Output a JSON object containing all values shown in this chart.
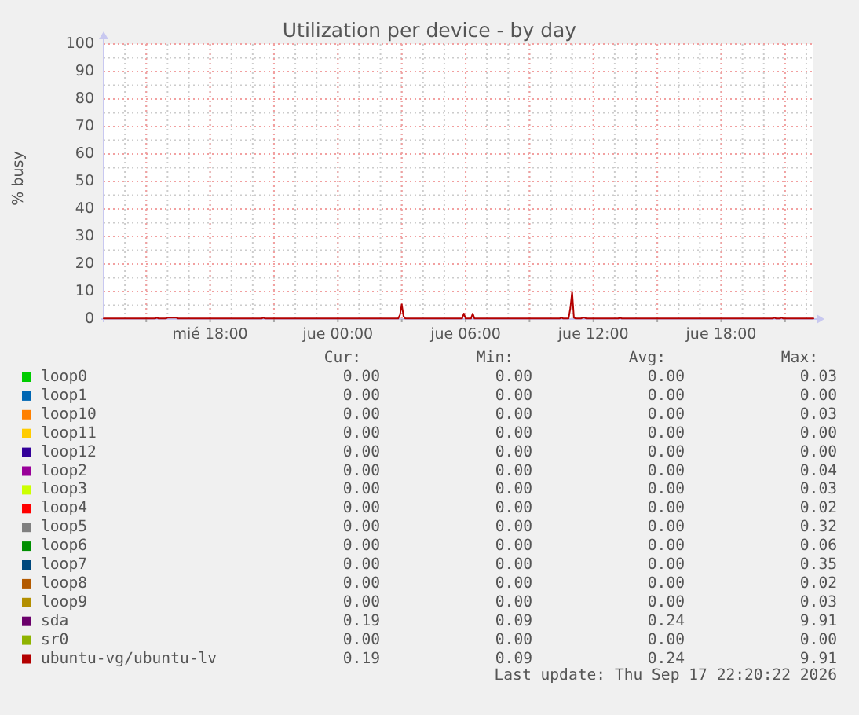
{
  "chart_data": {
    "type": "line",
    "title": "Utilization per device - by day",
    "ylabel": "% busy",
    "xlim": [
      "2026-09-16T13:00",
      "2026-09-17T22:20"
    ],
    "xticks": [
      {
        "value": "2026-09-16T15:00",
        "label": null
      },
      {
        "value": "2026-09-16T18:00",
        "label": "mié 18:00"
      },
      {
        "value": "2026-09-16T21:00",
        "label": null
      },
      {
        "value": "2026-09-17T00:00",
        "label": "jue 00:00"
      },
      {
        "value": "2026-09-17T03:00",
        "label": null
      },
      {
        "value": "2026-09-17T06:00",
        "label": "jue 06:00"
      },
      {
        "value": "2026-09-17T09:00",
        "label": null
      },
      {
        "value": "2026-09-17T12:00",
        "label": "jue 12:00"
      },
      {
        "value": "2026-09-17T15:00",
        "label": null
      },
      {
        "value": "2026-09-17T18:00",
        "label": "jue 18:00"
      },
      {
        "value": "2026-09-17T21:00",
        "label": null
      }
    ],
    "ylim": [
      0,
      100
    ],
    "yticks": [
      0,
      10,
      20,
      30,
      40,
      50,
      60,
      70,
      80,
      90,
      100
    ],
    "grid": true,
    "legend": "bottom",
    "x": [
      "2026-09-16T13:00",
      "2026-09-16T15:25",
      "2026-09-16T15:30",
      "2026-09-16T15:35",
      "2026-09-16T15:55",
      "2026-09-16T16:00",
      "2026-09-16T16:25",
      "2026-09-16T16:30",
      "2026-09-16T20:25",
      "2026-09-16T20:30",
      "2026-09-16T20:35",
      "2026-09-17T02:50",
      "2026-09-17T02:55",
      "2026-09-17T03:00",
      "2026-09-17T03:05",
      "2026-09-17T03:10",
      "2026-09-17T05:50",
      "2026-09-17T05:55",
      "2026-09-17T06:00",
      "2026-09-17T06:15",
      "2026-09-17T06:20",
      "2026-09-17T06:25",
      "2026-09-17T10:25",
      "2026-09-17T10:30",
      "2026-09-17T10:35",
      "2026-09-17T10:50",
      "2026-09-17T10:55",
      "2026-09-17T11:00",
      "2026-09-17T11:05",
      "2026-09-17T11:10",
      "2026-09-17T11:25",
      "2026-09-17T11:30",
      "2026-09-17T11:35",
      "2026-09-17T11:40",
      "2026-09-17T13:10",
      "2026-09-17T13:15",
      "2026-09-17T13:20",
      "2026-09-17T20:25",
      "2026-09-17T20:30",
      "2026-09-17T20:35",
      "2026-09-17T20:45",
      "2026-09-17T20:50",
      "2026-09-17T20:55",
      "2026-09-17T22:20"
    ],
    "series": [
      {
        "name": "loop0",
        "color": "#00cc00",
        "values": [
          null,
          null,
          null,
          null,
          null,
          null,
          null,
          null,
          null,
          null,
          null,
          null,
          null,
          null,
          null,
          null,
          null,
          null,
          null,
          null,
          null,
          null,
          null,
          null,
          null,
          null,
          null,
          null,
          null,
          null,
          null,
          null,
          null,
          null,
          null,
          null,
          null,
          null,
          null,
          null,
          null,
          null,
          null,
          null
        ]
      },
      {
        "name": "loop1",
        "color": "#0066b3",
        "values": [
          null,
          null,
          null,
          null,
          null,
          null,
          null,
          null,
          null,
          null,
          null,
          null,
          null,
          null,
          null,
          null,
          null,
          null,
          null,
          null,
          null,
          null,
          null,
          null,
          null,
          null,
          null,
          null,
          null,
          null,
          null,
          null,
          null,
          null,
          null,
          null,
          null,
          null,
          null,
          null,
          null,
          null,
          null,
          null
        ]
      },
      {
        "name": "loop10",
        "color": "#ff8000",
        "values": [
          null,
          null,
          null,
          null,
          null,
          null,
          null,
          null,
          null,
          null,
          null,
          null,
          null,
          null,
          null,
          null,
          null,
          null,
          null,
          null,
          null,
          null,
          null,
          null,
          null,
          null,
          null,
          null,
          null,
          null,
          null,
          null,
          null,
          null,
          null,
          null,
          null,
          null,
          null,
          null,
          null,
          null,
          null,
          null
        ]
      },
      {
        "name": "loop11",
        "color": "#ffcc00",
        "values": [
          null,
          null,
          null,
          null,
          null,
          null,
          null,
          null,
          null,
          null,
          null,
          null,
          null,
          null,
          null,
          null,
          null,
          null,
          null,
          null,
          null,
          null,
          null,
          null,
          null,
          null,
          null,
          null,
          null,
          null,
          null,
          null,
          null,
          null,
          null,
          null,
          null,
          null,
          null,
          null,
          null,
          null,
          null,
          null
        ]
      },
      {
        "name": "loop12",
        "color": "#330099",
        "values": [
          null,
          null,
          null,
          null,
          null,
          null,
          null,
          null,
          null,
          null,
          null,
          null,
          null,
          null,
          null,
          null,
          null,
          null,
          null,
          null,
          null,
          null,
          null,
          null,
          null,
          null,
          null,
          null,
          null,
          null,
          null,
          null,
          null,
          null,
          null,
          null,
          null,
          null,
          null,
          null,
          null,
          null,
          null,
          null
        ]
      },
      {
        "name": "loop2",
        "color": "#990099",
        "values": [
          null,
          null,
          null,
          null,
          null,
          null,
          null,
          null,
          null,
          null,
          null,
          null,
          null,
          null,
          null,
          null,
          null,
          null,
          null,
          null,
          null,
          null,
          null,
          null,
          null,
          null,
          null,
          null,
          null,
          null,
          null,
          null,
          null,
          null,
          null,
          null,
          null,
          null,
          null,
          null,
          null,
          null,
          null,
          null
        ]
      },
      {
        "name": "loop3",
        "color": "#ccff00",
        "values": [
          null,
          null,
          null,
          null,
          null,
          null,
          null,
          null,
          null,
          null,
          null,
          null,
          null,
          null,
          null,
          null,
          null,
          null,
          null,
          null,
          null,
          null,
          null,
          null,
          null,
          null,
          null,
          null,
          null,
          null,
          null,
          null,
          null,
          null,
          null,
          null,
          null,
          null,
          null,
          null,
          null,
          null,
          null,
          null
        ]
      },
      {
        "name": "loop4",
        "color": "#ff0000",
        "values": [
          null,
          null,
          null,
          null,
          null,
          null,
          null,
          null,
          null,
          null,
          null,
          null,
          null,
          null,
          null,
          null,
          null,
          null,
          null,
          null,
          null,
          null,
          null,
          null,
          null,
          null,
          null,
          null,
          null,
          null,
          null,
          null,
          null,
          null,
          null,
          null,
          null,
          null,
          null,
          null,
          null,
          null,
          null,
          null
        ]
      },
      {
        "name": "loop5",
        "color": "#808080",
        "values": [
          null,
          null,
          null,
          null,
          null,
          null,
          null,
          null,
          null,
          null,
          null,
          null,
          null,
          null,
          null,
          null,
          null,
          null,
          null,
          null,
          null,
          null,
          null,
          null,
          null,
          null,
          null,
          null,
          null,
          null,
          null,
          null,
          null,
          null,
          null,
          null,
          null,
          null,
          null,
          null,
          null,
          null,
          null,
          null
        ]
      },
      {
        "name": "loop6",
        "color": "#008f00",
        "values": [
          null,
          null,
          null,
          null,
          null,
          null,
          null,
          null,
          null,
          null,
          null,
          null,
          null,
          null,
          null,
          null,
          null,
          null,
          null,
          null,
          null,
          null,
          null,
          null,
          null,
          null,
          null,
          null,
          null,
          null,
          null,
          null,
          null,
          null,
          null,
          null,
          null,
          null,
          null,
          null,
          null,
          null,
          null,
          null
        ]
      },
      {
        "name": "loop7",
        "color": "#00487d",
        "values": [
          null,
          null,
          null,
          null,
          null,
          null,
          null,
          null,
          null,
          null,
          null,
          null,
          null,
          null,
          null,
          null,
          null,
          null,
          null,
          null,
          null,
          null,
          null,
          null,
          null,
          null,
          null,
          null,
          null,
          null,
          null,
          null,
          null,
          null,
          null,
          null,
          null,
          null,
          null,
          null,
          null,
          null,
          null,
          null
        ]
      },
      {
        "name": "loop8",
        "color": "#b35a00",
        "values": [
          null,
          null,
          null,
          null,
          null,
          null,
          null,
          null,
          null,
          null,
          null,
          null,
          null,
          null,
          null,
          null,
          null,
          null,
          null,
          null,
          null,
          null,
          null,
          null,
          null,
          null,
          null,
          null,
          null,
          null,
          null,
          null,
          null,
          null,
          null,
          null,
          null,
          null,
          null,
          null,
          null,
          null,
          null,
          null
        ]
      },
      {
        "name": "loop9",
        "color": "#b38f00",
        "values": [
          null,
          null,
          null,
          null,
          null,
          null,
          null,
          null,
          null,
          null,
          null,
          null,
          null,
          null,
          null,
          null,
          null,
          null,
          null,
          null,
          null,
          null,
          null,
          null,
          null,
          null,
          null,
          null,
          null,
          null,
          null,
          null,
          null,
          null,
          null,
          null,
          null,
          null,
          null,
          null,
          null,
          null,
          null,
          null
        ]
      },
      {
        "name": "sda",
        "color": "#6b006b",
        "values": [
          null,
          null,
          null,
          null,
          null,
          null,
          null,
          null,
          null,
          null,
          null,
          null,
          null,
          null,
          null,
          null,
          null,
          null,
          null,
          null,
          null,
          null,
          null,
          null,
          null,
          null,
          null,
          null,
          null,
          null,
          null,
          null,
          null,
          null,
          null,
          null,
          null,
          null,
          null,
          null,
          null,
          null,
          null,
          null
        ]
      },
      {
        "name": "sr0",
        "color": "#8fb300",
        "values": [
          null,
          null,
          null,
          null,
          null,
          null,
          null,
          null,
          null,
          null,
          null,
          null,
          null,
          null,
          null,
          null,
          null,
          null,
          null,
          null,
          null,
          null,
          null,
          null,
          null,
          null,
          null,
          null,
          null,
          null,
          null,
          null,
          null,
          null,
          null,
          null,
          null,
          null,
          null,
          null,
          null,
          null,
          null,
          null
        ]
      },
      {
        "name": "ubuntu-vg/ubuntu-lv",
        "color": "#b30000",
        "values": [
          0.2,
          0.2,
          0.5,
          0.2,
          0.2,
          0.5,
          0.5,
          0.2,
          0.2,
          0.5,
          0.2,
          0.2,
          1.5,
          5.3,
          1,
          0.2,
          0.2,
          2,
          0.2,
          0.2,
          2,
          0.2,
          0.2,
          0.5,
          0.2,
          0.2,
          4,
          9.91,
          0.5,
          0.2,
          0.2,
          0.5,
          0.5,
          0.2,
          0.2,
          0.5,
          0.2,
          0.2,
          0.5,
          0.2,
          0.2,
          0.5,
          0.2,
          0.2
        ]
      }
    ],
    "annotations": [
      "Cur:",
      "Min:",
      "Avg:",
      "Max:",
      "0.00",
      "0.00",
      "0.00",
      "0.03",
      "0.00",
      "0.00",
      "0.00",
      "0.00",
      "0.00",
      "0.00",
      "0.00",
      "0.03",
      "0.00",
      "0.00",
      "0.00",
      "0.00",
      "0.00",
      "0.00",
      "0.00",
      "0.00",
      "0.00",
      "0.00",
      "0.00",
      "0.04",
      "0.00",
      "0.00",
      "0.00",
      "0.03",
      "0.00",
      "0.00",
      "0.00",
      "0.02",
      "0.00",
      "0.00",
      "0.00",
      "0.32",
      "0.00",
      "0.00",
      "0.00",
      "0.06",
      "0.00",
      "0.00",
      "0.00",
      "0.35",
      "0.00",
      "0.00",
      "0.00",
      "0.02",
      "0.00",
      "0.00",
      "0.00",
      "0.03",
      "0.19",
      "0.09",
      "0.24",
      "9.91",
      "0.00",
      "0.00",
      "0.00",
      "0.00",
      "0.19",
      "0.09",
      "0.24",
      "9.91",
      "Last update: Thu Sep 17 22:20:22 2026"
    ]
  }
}
